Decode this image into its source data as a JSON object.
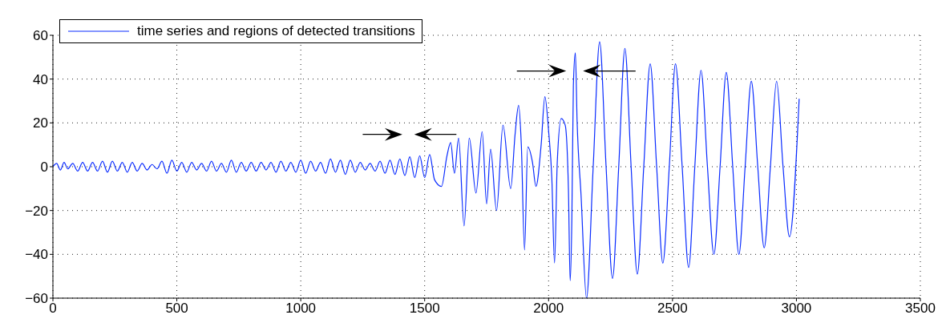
{
  "chart_data": {
    "type": "line",
    "x": [
      0,
      15,
      30,
      45,
      60,
      80,
      100,
      120,
      140,
      160,
      180,
      200,
      220,
      240,
      260,
      280,
      300,
      320,
      340,
      360,
      380,
      400,
      420,
      440,
      460,
      480,
      500,
      520,
      540,
      560,
      580,
      600,
      620,
      640,
      660,
      680,
      700,
      720,
      740,
      760,
      780,
      800,
      820,
      840,
      860,
      880,
      900,
      920,
      940,
      960,
      980,
      1000,
      1020,
      1040,
      1060,
      1080,
      1100,
      1120,
      1140,
      1160,
      1180,
      1200,
      1220,
      1240,
      1260,
      1280,
      1300,
      1320,
      1340,
      1360,
      1380,
      1400,
      1420,
      1440,
      1460,
      1480,
      1500,
      1520,
      1540,
      1568,
      1590,
      1605,
      1620,
      1637,
      1659,
      1680,
      1707,
      1732,
      1750,
      1766,
      1790,
      1816,
      1847,
      1865,
      1879,
      1890,
      1903,
      1916,
      1935,
      1949,
      1970,
      1985,
      2001,
      2013,
      2024,
      2035,
      2051,
      2067,
      2080,
      2087,
      2094,
      2100,
      2108,
      2115,
      2131,
      2153,
      2180,
      2206,
      2232,
      2258,
      2283,
      2308,
      2333,
      2358,
      2384,
      2410,
      2436,
      2461,
      2487,
      2512,
      2539,
      2565,
      2590,
      2615,
      2641,
      2667,
      2692,
      2717,
      2743,
      2768,
      2793,
      2818,
      2844,
      2870,
      2895,
      2920,
      2946,
      2972,
      3011
    ],
    "series": [
      {
        "name": "time series and regions of detected transitions",
        "color": "#0a2cff",
        "values": [
          0,
          1.5,
          -1.5,
          2,
          -1,
          1.5,
          -2,
          2,
          -2,
          2,
          -2,
          2.5,
          -2.5,
          2.5,
          -2,
          2,
          -2.5,
          2,
          -2,
          1.5,
          -1.5,
          1,
          -1,
          2.5,
          -3,
          3,
          -2,
          2,
          -2.5,
          2,
          -1.5,
          1.5,
          -2,
          2.5,
          -2,
          1.5,
          -2.5,
          3,
          -2.5,
          2,
          -2,
          2,
          -2,
          2,
          -1.5,
          2,
          -2.5,
          2.5,
          -2,
          2,
          -2.5,
          3,
          -3,
          2.5,
          -2,
          2,
          -3,
          3.5,
          -2.5,
          3,
          -3.5,
          3,
          -2.5,
          2,
          -1.5,
          1.5,
          -2,
          2.5,
          -3,
          3,
          -3.5,
          3.5,
          -4,
          4.5,
          -5,
          5,
          -5,
          5.5,
          -6,
          -9,
          5,
          11,
          -3,
          13,
          -27,
          13,
          -12,
          16,
          -17,
          8,
          -20,
          19,
          -10,
          15,
          28,
          10,
          -38,
          9,
          2,
          -9,
          10,
          32,
          15,
          -5,
          -44,
          2,
          22,
          19,
          -10,
          -52,
          -23,
          37,
          52,
          21,
          -13,
          -60,
          0,
          57,
          0,
          -51,
          0,
          54,
          0,
          -49,
          0,
          47,
          0,
          -44,
          0,
          47,
          0,
          -46,
          0,
          44,
          0,
          -40,
          0,
          43,
          0,
          -40,
          0,
          39,
          0,
          -37,
          0,
          39,
          0,
          -32,
          31
        ]
      }
    ],
    "xlim": [
      0,
      3500
    ],
    "xticks": [
      0,
      500,
      1000,
      1500,
      2000,
      2500,
      3000,
      3500
    ],
    "ylim": [
      -60,
      60
    ],
    "yticks": [
      -60,
      -40,
      -20,
      0,
      20,
      40,
      60
    ],
    "grid": true,
    "legend": "top left"
  }
}
